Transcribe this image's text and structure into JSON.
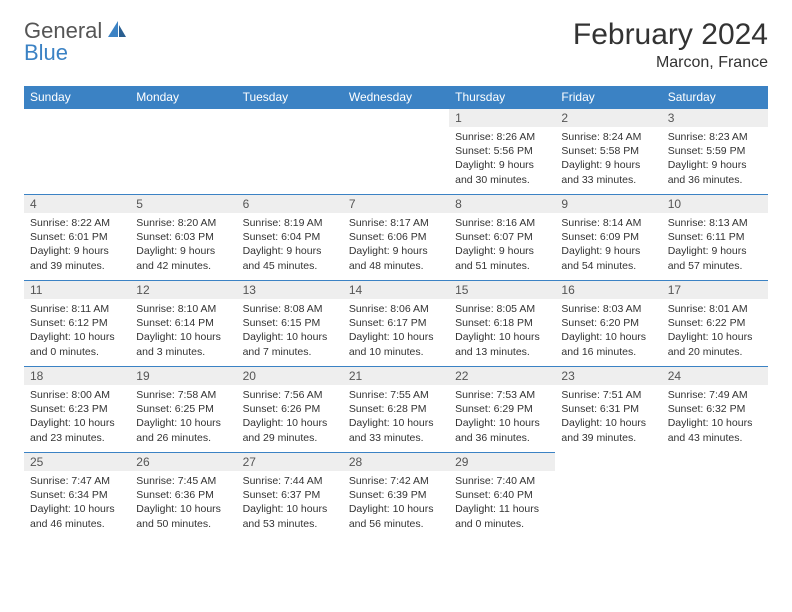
{
  "logo": {
    "text1": "General",
    "text2": "Blue"
  },
  "title": "February 2024",
  "location": "Marcon, France",
  "colors": {
    "header_bg": "#3b82c4",
    "header_text": "#ffffff",
    "daynum_bg": "#eeeeee",
    "border": "#3b82c4",
    "body_text": "#333333",
    "logo_gray": "#555555",
    "logo_blue": "#3b82c4"
  },
  "weekdays": [
    "Sunday",
    "Monday",
    "Tuesday",
    "Wednesday",
    "Thursday",
    "Friday",
    "Saturday"
  ],
  "weeks": [
    [
      null,
      null,
      null,
      null,
      {
        "n": "1",
        "sr": "8:26 AM",
        "ss": "5:56 PM",
        "dl": "9 hours and 30 minutes."
      },
      {
        "n": "2",
        "sr": "8:24 AM",
        "ss": "5:58 PM",
        "dl": "9 hours and 33 minutes."
      },
      {
        "n": "3",
        "sr": "8:23 AM",
        "ss": "5:59 PM",
        "dl": "9 hours and 36 minutes."
      }
    ],
    [
      {
        "n": "4",
        "sr": "8:22 AM",
        "ss": "6:01 PM",
        "dl": "9 hours and 39 minutes."
      },
      {
        "n": "5",
        "sr": "8:20 AM",
        "ss": "6:03 PM",
        "dl": "9 hours and 42 minutes."
      },
      {
        "n": "6",
        "sr": "8:19 AM",
        "ss": "6:04 PM",
        "dl": "9 hours and 45 minutes."
      },
      {
        "n": "7",
        "sr": "8:17 AM",
        "ss": "6:06 PM",
        "dl": "9 hours and 48 minutes."
      },
      {
        "n": "8",
        "sr": "8:16 AM",
        "ss": "6:07 PM",
        "dl": "9 hours and 51 minutes."
      },
      {
        "n": "9",
        "sr": "8:14 AM",
        "ss": "6:09 PM",
        "dl": "9 hours and 54 minutes."
      },
      {
        "n": "10",
        "sr": "8:13 AM",
        "ss": "6:11 PM",
        "dl": "9 hours and 57 minutes."
      }
    ],
    [
      {
        "n": "11",
        "sr": "8:11 AM",
        "ss": "6:12 PM",
        "dl": "10 hours and 0 minutes."
      },
      {
        "n": "12",
        "sr": "8:10 AM",
        "ss": "6:14 PM",
        "dl": "10 hours and 3 minutes."
      },
      {
        "n": "13",
        "sr": "8:08 AM",
        "ss": "6:15 PM",
        "dl": "10 hours and 7 minutes."
      },
      {
        "n": "14",
        "sr": "8:06 AM",
        "ss": "6:17 PM",
        "dl": "10 hours and 10 minutes."
      },
      {
        "n": "15",
        "sr": "8:05 AM",
        "ss": "6:18 PM",
        "dl": "10 hours and 13 minutes."
      },
      {
        "n": "16",
        "sr": "8:03 AM",
        "ss": "6:20 PM",
        "dl": "10 hours and 16 minutes."
      },
      {
        "n": "17",
        "sr": "8:01 AM",
        "ss": "6:22 PM",
        "dl": "10 hours and 20 minutes."
      }
    ],
    [
      {
        "n": "18",
        "sr": "8:00 AM",
        "ss": "6:23 PM",
        "dl": "10 hours and 23 minutes."
      },
      {
        "n": "19",
        "sr": "7:58 AM",
        "ss": "6:25 PM",
        "dl": "10 hours and 26 minutes."
      },
      {
        "n": "20",
        "sr": "7:56 AM",
        "ss": "6:26 PM",
        "dl": "10 hours and 29 minutes."
      },
      {
        "n": "21",
        "sr": "7:55 AM",
        "ss": "6:28 PM",
        "dl": "10 hours and 33 minutes."
      },
      {
        "n": "22",
        "sr": "7:53 AM",
        "ss": "6:29 PM",
        "dl": "10 hours and 36 minutes."
      },
      {
        "n": "23",
        "sr": "7:51 AM",
        "ss": "6:31 PM",
        "dl": "10 hours and 39 minutes."
      },
      {
        "n": "24",
        "sr": "7:49 AM",
        "ss": "6:32 PM",
        "dl": "10 hours and 43 minutes."
      }
    ],
    [
      {
        "n": "25",
        "sr": "7:47 AM",
        "ss": "6:34 PM",
        "dl": "10 hours and 46 minutes."
      },
      {
        "n": "26",
        "sr": "7:45 AM",
        "ss": "6:36 PM",
        "dl": "10 hours and 50 minutes."
      },
      {
        "n": "27",
        "sr": "7:44 AM",
        "ss": "6:37 PM",
        "dl": "10 hours and 53 minutes."
      },
      {
        "n": "28",
        "sr": "7:42 AM",
        "ss": "6:39 PM",
        "dl": "10 hours and 56 minutes."
      },
      {
        "n": "29",
        "sr": "7:40 AM",
        "ss": "6:40 PM",
        "dl": "11 hours and 0 minutes."
      },
      null,
      null
    ]
  ],
  "labels": {
    "sunrise": "Sunrise: ",
    "sunset": "Sunset: ",
    "daylight": "Daylight: "
  }
}
